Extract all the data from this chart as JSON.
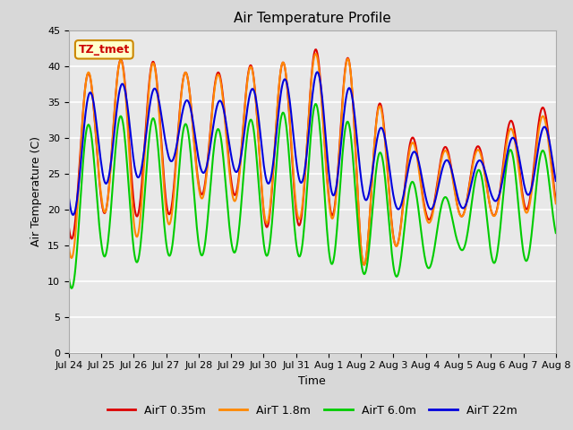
{
  "title": "Air Temperature Profile",
  "xlabel": "Time",
  "ylabel": "Air Temperature (C)",
  "ylim": [
    0,
    45
  ],
  "xlim": [
    0,
    360
  ],
  "annotation_text": "TZ_tmet",
  "annotation_color": "#cc0000",
  "xtick_labels": [
    "Jul 24",
    "Jul 25",
    "Jul 26",
    "Jul 27",
    "Jul 28",
    "Jul 29",
    "Jul 30",
    "Jul 31",
    "Aug 1",
    "Aug 2",
    "Aug 3",
    "Aug 4",
    "Aug 5",
    "Aug 6",
    "Aug 7",
    "Aug 8"
  ],
  "xtick_positions": [
    0,
    24,
    48,
    72,
    96,
    120,
    144,
    168,
    192,
    216,
    240,
    264,
    288,
    312,
    336,
    360
  ],
  "legend_labels": [
    "AirT 0.35m",
    "AirT 1.8m",
    "AirT 6.0m",
    "AirT 22m"
  ],
  "line_colors": [
    "#dd0000",
    "#ff8800",
    "#00cc00",
    "#0000dd"
  ],
  "bg_color": "#d8d8d8",
  "plot_bg": "#e8e8e8",
  "title_fontsize": 11,
  "label_fontsize": 9,
  "tick_fontsize": 8
}
